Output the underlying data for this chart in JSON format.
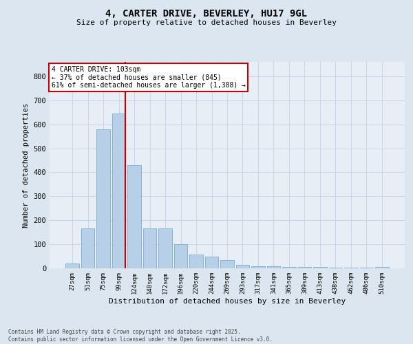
{
  "title1": "4, CARTER DRIVE, BEVERLEY, HU17 9GL",
  "title2": "Size of property relative to detached houses in Beverley",
  "xlabel": "Distribution of detached houses by size in Beverley",
  "ylabel": "Number of detached properties",
  "categories": [
    "27sqm",
    "51sqm",
    "75sqm",
    "99sqm",
    "124sqm",
    "148sqm",
    "172sqm",
    "196sqm",
    "220sqm",
    "244sqm",
    "269sqm",
    "293sqm",
    "317sqm",
    "341sqm",
    "365sqm",
    "389sqm",
    "413sqm",
    "438sqm",
    "462sqm",
    "486sqm",
    "510sqm"
  ],
  "values": [
    20,
    165,
    580,
    645,
    430,
    165,
    165,
    100,
    58,
    48,
    35,
    15,
    10,
    8,
    7,
    5,
    5,
    3,
    2,
    2,
    5
  ],
  "bar_color": "#b8cfe8",
  "bar_edge_color": "#7aadd4",
  "grid_color": "#c8d4e8",
  "vline_color": "#cc0000",
  "vline_x_index": 3,
  "annotation_text": "4 CARTER DRIVE: 103sqm\n← 37% of detached houses are smaller (845)\n61% of semi-detached houses are larger (1,388) →",
  "annotation_box_color": "#ffffff",
  "annotation_box_edge_color": "#cc0000",
  "ylim": [
    0,
    860
  ],
  "yticks": [
    0,
    100,
    200,
    300,
    400,
    500,
    600,
    700,
    800
  ],
  "footer": "Contains HM Land Registry data © Crown copyright and database right 2025.\nContains public sector information licensed under the Open Government Licence v3.0.",
  "bg_color": "#dce6f0",
  "plot_bg_color": "#e8eef6"
}
